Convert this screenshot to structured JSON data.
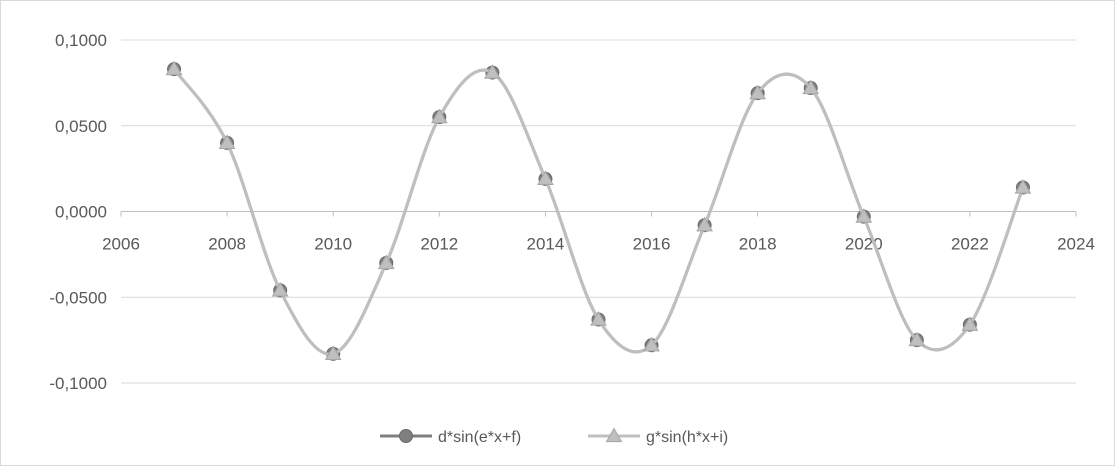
{
  "chart_data": {
    "type": "scatter",
    "title": "",
    "xlabel": "",
    "ylabel": "",
    "xlim": [
      2006,
      2024
    ],
    "ylim": [
      -0.1,
      0.1
    ],
    "x_ticks": [
      "2006",
      "2008",
      "2010",
      "2012",
      "2014",
      "2016",
      "2018",
      "2020",
      "2022",
      "2024"
    ],
    "x_tick_values": [
      2006,
      2008,
      2010,
      2012,
      2014,
      2016,
      2018,
      2020,
      2022,
      2024
    ],
    "y_ticks": [
      "0,1000",
      "0,0500",
      "0,0000",
      "-0,0500",
      "-0,1000"
    ],
    "y_tick_values": [
      0.1,
      0.05,
      0.0,
      -0.05,
      -0.1
    ],
    "grid": true,
    "legend_position": "bottom",
    "series": [
      {
        "name": "d*sin(e*x+f)",
        "marker": "circle",
        "color": "#7f7f7f",
        "x": [
          2007,
          2008,
          2009,
          2010,
          2011,
          2012,
          2013,
          2014,
          2015,
          2016,
          2017,
          2018,
          2019,
          2020,
          2021,
          2022,
          2023
        ],
        "y": [
          0.083,
          0.04,
          -0.046,
          -0.083,
          -0.03,
          0.055,
          0.081,
          0.019,
          -0.063,
          -0.078,
          -0.008,
          0.069,
          0.072,
          -0.003,
          -0.075,
          -0.066,
          0.014
        ]
      },
      {
        "name": "g*sin(h*x+i)",
        "marker": "triangle",
        "color": "#bfbfbf",
        "x": [
          2007,
          2008,
          2009,
          2010,
          2011,
          2012,
          2013,
          2014,
          2015,
          2016,
          2017,
          2018,
          2019,
          2020,
          2021,
          2022,
          2023
        ],
        "y": [
          0.083,
          0.04,
          -0.046,
          -0.083,
          -0.03,
          0.055,
          0.081,
          0.019,
          -0.063,
          -0.078,
          -0.008,
          0.069,
          0.072,
          -0.003,
          -0.075,
          -0.066,
          0.014
        ]
      }
    ]
  }
}
